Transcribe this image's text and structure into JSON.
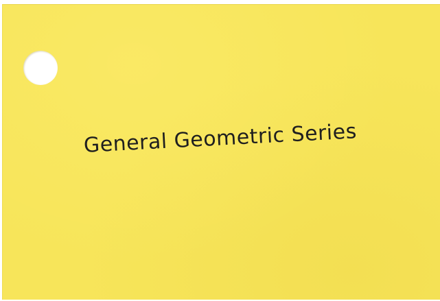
{
  "card": {
    "title": "General Geometric Series",
    "color": "#f7e55a"
  }
}
